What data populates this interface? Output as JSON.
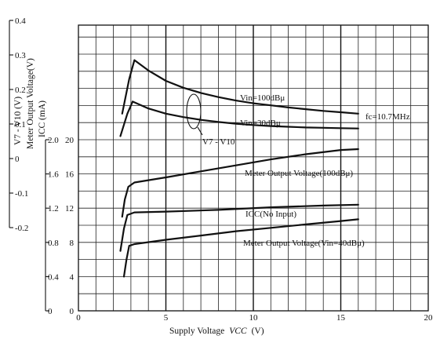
{
  "chart_data": {
    "type": "line",
    "x": {
      "label": "Supply Voltage",
      "label_symbol": "VCC",
      "label_unit": "(V)",
      "range": [
        0,
        20
      ],
      "ticks": [
        "0",
        "5",
        "10",
        "15",
        "20"
      ]
    },
    "y_axes": [
      {
        "label": "V7 - V10 (V)",
        "ticks": [
          "0.4",
          "0.3",
          "0.2",
          "0.1",
          "0",
          "-0.1",
          "-0.2"
        ],
        "range": [
          -0.2,
          0.4
        ]
      },
      {
        "label": "Meter Output Voltage(V)",
        "ticks": [
          "2.0",
          "1.6",
          "1.2",
          "0.8",
          "0.4",
          "0"
        ],
        "range": [
          0,
          2.0
        ]
      },
      {
        "label": "ICC (mA)",
        "ticks": [
          "20",
          "16",
          "12",
          "8",
          "4",
          "0"
        ],
        "range": [
          0,
          20
        ]
      }
    ],
    "annotation": "fc=10.7MHz",
    "series": [
      {
        "name": "Vin=100dBμ",
        "axis": "V7-V10",
        "points": [
          [
            2.5,
            0.13
          ],
          [
            2.9,
            0.23
          ],
          [
            3.2,
            0.285
          ],
          [
            4,
            0.255
          ],
          [
            5,
            0.225
          ],
          [
            6,
            0.205
          ],
          [
            7,
            0.19
          ],
          [
            8,
            0.178
          ],
          [
            9,
            0.168
          ],
          [
            10,
            0.16
          ],
          [
            11,
            0.154
          ],
          [
            12,
            0.148
          ],
          [
            13,
            0.143
          ],
          [
            14,
            0.138
          ],
          [
            15,
            0.134
          ],
          [
            16,
            0.13
          ]
        ]
      },
      {
        "name": "Vin=30dBμ",
        "axis": "V7-V10",
        "points": [
          [
            2.4,
            0.065
          ],
          [
            2.8,
            0.13
          ],
          [
            3.1,
            0.165
          ],
          [
            4,
            0.145
          ],
          [
            5,
            0.13
          ],
          [
            6,
            0.12
          ],
          [
            7,
            0.112
          ],
          [
            8,
            0.106
          ],
          [
            9,
            0.101
          ],
          [
            10,
            0.097
          ],
          [
            11,
            0.094
          ],
          [
            12,
            0.092
          ],
          [
            13,
            0.09
          ],
          [
            14,
            0.089
          ],
          [
            15,
            0.088
          ],
          [
            16,
            0.087
          ]
        ]
      },
      {
        "name": "Meter Output Voltage(100dBμ)",
        "axis": "Meter",
        "points": [
          [
            2.5,
            1.1
          ],
          [
            2.65,
            1.3
          ],
          [
            2.85,
            1.45
          ],
          [
            3.2,
            1.5
          ],
          [
            5,
            1.56
          ],
          [
            7,
            1.63
          ],
          [
            9,
            1.7
          ],
          [
            11,
            1.77
          ],
          [
            13,
            1.83
          ],
          [
            15,
            1.88
          ],
          [
            16,
            1.89
          ]
        ]
      },
      {
        "name": "ICC(No Input)",
        "axis": "ICC",
        "points": [
          [
            2.4,
            7.0
          ],
          [
            2.6,
            9.6
          ],
          [
            2.8,
            11.2
          ],
          [
            3.2,
            11.5
          ],
          [
            5,
            11.6
          ],
          [
            8,
            11.8
          ],
          [
            11,
            12.1
          ],
          [
            14,
            12.3
          ],
          [
            16,
            12.4
          ]
        ]
      },
      {
        "name": "Meter Output Voltage(Vin=40dBμ)",
        "axis": "Meter",
        "points": [
          [
            2.6,
            0.4
          ],
          [
            2.75,
            0.6
          ],
          [
            2.9,
            0.76
          ],
          [
            3.2,
            0.78
          ],
          [
            5,
            0.83
          ],
          [
            7,
            0.88
          ],
          [
            9,
            0.93
          ],
          [
            11,
            0.97
          ],
          [
            13,
            1.01
          ],
          [
            15,
            1.05
          ],
          [
            16,
            1.07
          ]
        ]
      }
    ],
    "curve_labels": [
      {
        "text": "Vin=100dBμ",
        "series": 0
      },
      {
        "text": "Vin=30dBμ",
        "series": 1
      },
      {
        "text": "V7 - V10",
        "series": "bracket"
      },
      {
        "text": "Meter Output Voltage(100dBμ)",
        "series": 2
      },
      {
        "text": "ICC(No Input)",
        "series": 3
      },
      {
        "text": "Meter Output Voltage(Vin=40dBμ)",
        "series": 4
      }
    ],
    "grid": true
  }
}
